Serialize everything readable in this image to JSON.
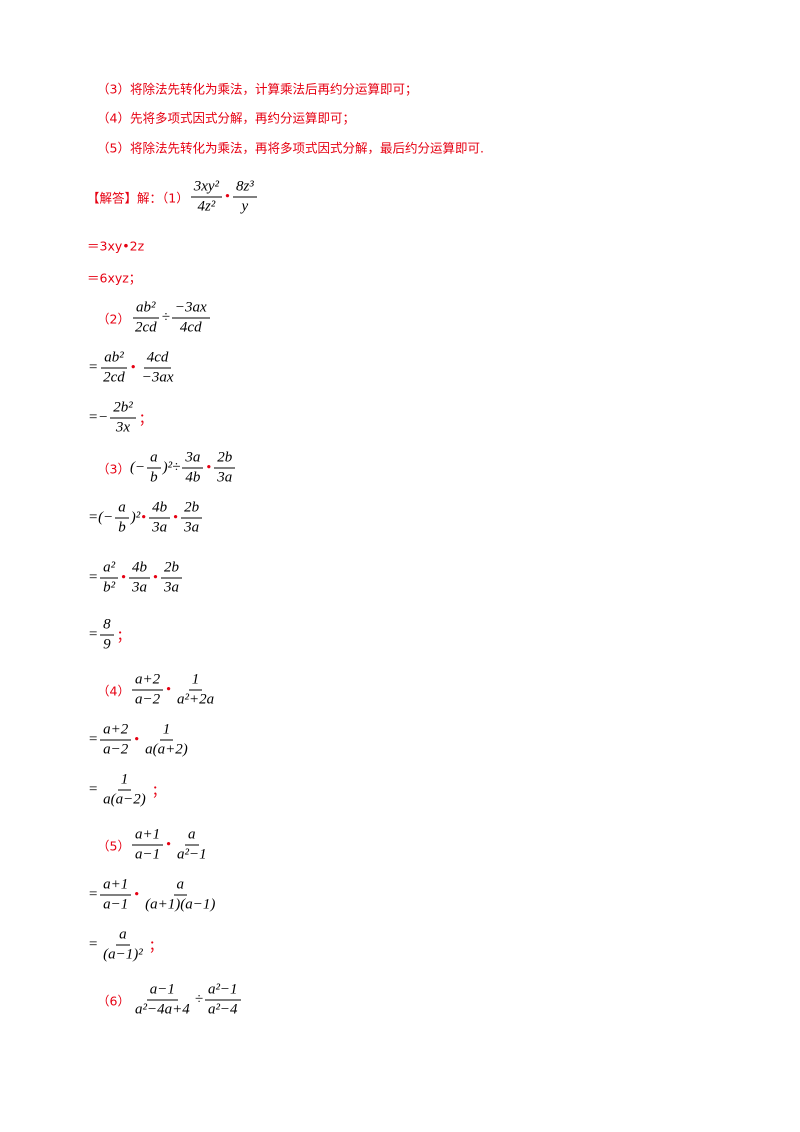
{
  "lines": [
    {
      "parts": [
        {
          "label": "（3）将除法先转化为乘法，计算乘法后再约分运算即可；"
        }
      ]
    },
    {
      "parts": [
        {
          "label": "（4）先将多项式因式分解，再约分运算即可；"
        }
      ]
    },
    {
      "parts": [
        {
          "label": "（5）将除法先转化为乘法，再将多项式因式分解，最后约分运算即可."
        }
      ]
    },
    {
      "parts": [
        {
          "label": "【解答】解：（1）"
        },
        {
          "frac": [
            "3xy²",
            "4z²"
          ]
        },
        {
          "op": "•"
        },
        {
          "frac": [
            "8z³",
            "y"
          ]
        }
      ]
    },
    {
      "parts": [
        {
          "label": "＝3xy•2z"
        }
      ]
    },
    {
      "parts": [
        {
          "label": "＝6xyz；"
        }
      ]
    },
    {
      "parts": [
        {
          "label": "（2）"
        },
        {
          "frac": [
            "ab²",
            "2cd"
          ]
        },
        {
          "text": "÷"
        },
        {
          "frac": [
            "−3ax",
            "4cd"
          ]
        }
      ]
    },
    {
      "parts": [
        {
          "text": "="
        },
        {
          "frac": [
            "ab²",
            "2cd"
          ]
        },
        {
          "op": "•"
        },
        {
          "frac": [
            "4cd",
            "−3ax"
          ]
        }
      ]
    },
    {
      "parts": [
        {
          "text": "=−"
        },
        {
          "frac": [
            "2b²",
            "3x"
          ]
        },
        {
          "op": "；"
        }
      ]
    },
    {
      "parts": [
        {
          "label": "（3）"
        },
        {
          "text": "(−"
        },
        {
          "frac": [
            "a",
            "b"
          ]
        },
        {
          "text": ")²÷"
        },
        {
          "frac": [
            "3a",
            "4b"
          ]
        },
        {
          "op": "•"
        },
        {
          "frac": [
            "2b",
            "3a"
          ]
        }
      ]
    },
    {
      "parts": [
        {
          "text": "=(−"
        },
        {
          "frac": [
            "a",
            "b"
          ]
        },
        {
          "text": ")²"
        },
        {
          "op": "•"
        },
        {
          "frac": [
            "4b",
            "3a"
          ]
        },
        {
          "op": "•"
        },
        {
          "frac": [
            "2b",
            "3a"
          ]
        }
      ]
    },
    {
      "parts": [
        {
          "text": "="
        },
        {
          "frac": [
            "a²",
            "b²"
          ]
        },
        {
          "op": "•"
        },
        {
          "frac": [
            "4b",
            "3a"
          ]
        },
        {
          "op": "•"
        },
        {
          "frac": [
            "2b",
            "3a"
          ]
        }
      ]
    },
    {
      "parts": [
        {
          "text": "="
        },
        {
          "frac": [
            "8",
            "9"
          ]
        },
        {
          "op": "；"
        }
      ]
    },
    {
      "parts": [
        {
          "label": "（4）"
        },
        {
          "frac": [
            "a+2",
            "a−2"
          ]
        },
        {
          "op": "•"
        },
        {
          "frac": [
            "1",
            "a²+2a"
          ]
        }
      ]
    },
    {
      "parts": [
        {
          "text": "="
        },
        {
          "frac": [
            "a+2",
            "a−2"
          ]
        },
        {
          "op": "•"
        },
        {
          "frac": [
            "1",
            "a(a+2)"
          ]
        }
      ]
    },
    {
      "parts": [
        {
          "text": "="
        },
        {
          "frac": [
            "1",
            "a(a−2)"
          ]
        },
        {
          "op": "；"
        }
      ]
    },
    {
      "parts": [
        {
          "label": "（5）"
        },
        {
          "frac": [
            "a+1",
            "a−1"
          ]
        },
        {
          "op": "•"
        },
        {
          "frac": [
            "a",
            "a²−1"
          ]
        }
      ]
    },
    {
      "parts": [
        {
          "text": "="
        },
        {
          "frac": [
            "a+1",
            "a−1"
          ]
        },
        {
          "op": "•"
        },
        {
          "frac": [
            "a",
            "(a+1)(a−1)"
          ]
        }
      ]
    },
    {
      "parts": [
        {
          "text": "="
        },
        {
          "frac": [
            "a",
            "(a−1)²"
          ]
        },
        {
          "op": "；"
        }
      ]
    },
    {
      "parts": [
        {
          "label": "（6）"
        },
        {
          "frac": [
            "a−1",
            "a²−4a+4"
          ]
        },
        {
          "text": "÷"
        },
        {
          "frac": [
            "a²−1",
            "a²−4"
          ]
        }
      ]
    }
  ]
}
